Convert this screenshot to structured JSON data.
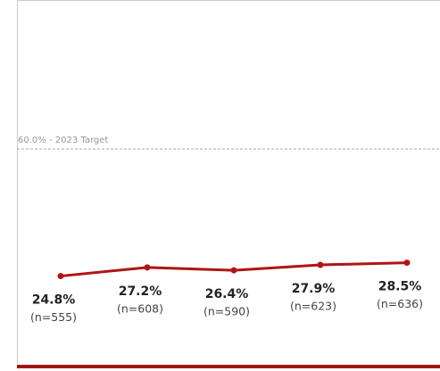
{
  "chart_data": {
    "type": "line",
    "categories": [
      null,
      null,
      null,
      null,
      null
    ],
    "series": [
      {
        "name": null,
        "color": "#b01515",
        "values": [
          24.8,
          27.2,
          26.4,
          27.9,
          28.5
        ],
        "value_labels": [
          "24.8%",
          "27.2%",
          "26.4%",
          "27.9%",
          "28.5%"
        ],
        "sample_labels": [
          "(n=555)",
          "(n=608)",
          "(n=590)",
          "(n=623)",
          "(n=636)"
        ]
      }
    ],
    "ylim": [
      0,
      100
    ],
    "reference_line": {
      "value": 60,
      "label": "60.0% - 2023 Target"
    }
  }
}
